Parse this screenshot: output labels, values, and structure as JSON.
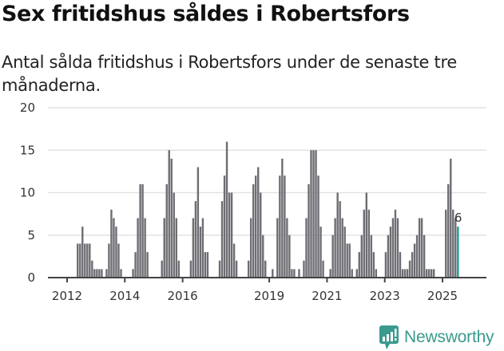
{
  "title": "Sex fritidshus såldes i Robertsfors",
  "subtitle": "Antal sålda fritidshus i Robertsfors under de senaste tre månaderna.",
  "brand": {
    "name": "Newsworthy",
    "color": "#3a9a8e",
    "icon": "bar-chart-speech-bubble-icon"
  },
  "colors": {
    "bar": "#6e6d73",
    "highlight": "#1a9e90",
    "grid": "#e2e2e2",
    "axis": "#444444"
  },
  "chart_data": {
    "type": "bar",
    "title": "Sex fritidshus såldes i Robertsfors",
    "subtitle": "Antal sålda fritidshus i Robertsfors under de senaste tre månaderna.",
    "xlabel": "",
    "ylabel": "",
    "ylim": [
      0,
      20
    ],
    "yticks": [
      0,
      5,
      10,
      15,
      20
    ],
    "xticks": [
      "2012",
      "2014",
      "2016",
      "2019",
      "2021",
      "2023",
      "2025"
    ],
    "grid": true,
    "x_start": "2012-01",
    "frequency": "monthly",
    "values": [
      0,
      0,
      0,
      0,
      4,
      4,
      6,
      4,
      4,
      4,
      2,
      1,
      1,
      1,
      1,
      0,
      1,
      4,
      8,
      7,
      6,
      4,
      1,
      0,
      0,
      0,
      0,
      1,
      3,
      7,
      11,
      11,
      7,
      3,
      0,
      0,
      0,
      0,
      0,
      2,
      7,
      11,
      15,
      14,
      10,
      7,
      2,
      0,
      0,
      0,
      0,
      2,
      7,
      9,
      13,
      6,
      7,
      3,
      3,
      0,
      0,
      0,
      0,
      2,
      9,
      12,
      16,
      10,
      10,
      4,
      2,
      0,
      0,
      0,
      0,
      2,
      7,
      11,
      12,
      13,
      10,
      5,
      2,
      0,
      0,
      1,
      0,
      7,
      12,
      14,
      12,
      7,
      5,
      1,
      1,
      0,
      1,
      0,
      2,
      7,
      11,
      15,
      15,
      15,
      12,
      6,
      2,
      0,
      0,
      1,
      5,
      7,
      10,
      9,
      7,
      6,
      4,
      4,
      1,
      0,
      1,
      3,
      5,
      8,
      10,
      8,
      5,
      3,
      1,
      0,
      0,
      0,
      3,
      5,
      6,
      7,
      8,
      7,
      3,
      1,
      1,
      1,
      2,
      3,
      4,
      5,
      7,
      7,
      5,
      1,
      1,
      1,
      1,
      0,
      0,
      0,
      0,
      8,
      11,
      14,
      8,
      7,
      6
    ],
    "highlight_last": true,
    "annotation": {
      "label": "6",
      "target": "last bar"
    }
  }
}
